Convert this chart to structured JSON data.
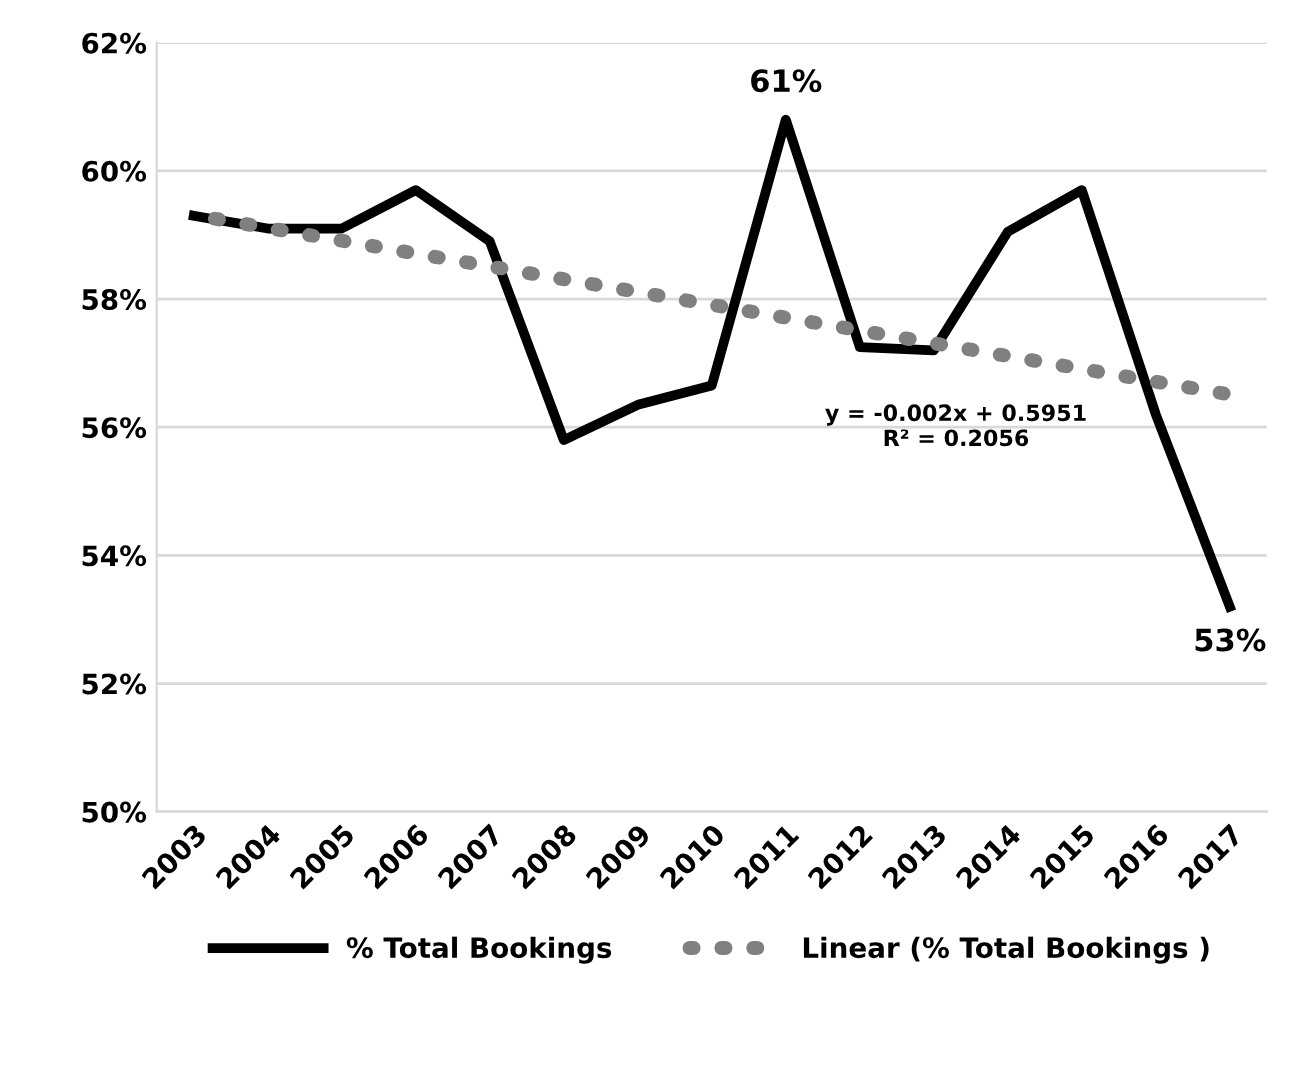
{
  "chart_data": {
    "type": "line",
    "categories": [
      "2003",
      "2004",
      "2005",
      "2006",
      "2007",
      "2008",
      "2009",
      "2010",
      "2011",
      "2012",
      "2013",
      "2014",
      "2015",
      "2016",
      "2017"
    ],
    "series": [
      {
        "name": "% Total Bookings",
        "color": "#000000",
        "line_style": "solid",
        "values": [
          59.3,
          59.1,
          59.1,
          59.7,
          58.9,
          55.8,
          56.35,
          56.65,
          60.8,
          57.25,
          57.2,
          59.05,
          59.7,
          56.2,
          53.2
        ],
        "value_labels": [
          null,
          null,
          null,
          null,
          null,
          null,
          null,
          null,
          "61%",
          null,
          null,
          null,
          null,
          null,
          "53%"
        ]
      },
      {
        "name": "Linear (% Total Bookings )",
        "color": "#808080",
        "line_style": "dotted",
        "values": [
          59.31,
          59.11,
          58.91,
          58.71,
          58.51,
          58.31,
          58.11,
          57.91,
          57.71,
          57.51,
          57.31,
          57.11,
          56.91,
          56.71,
          56.51
        ]
      }
    ],
    "annotations": [
      "y = -0.002x + 0.5951",
      "R² = 0.2056"
    ],
    "ylim": [
      50,
      62
    ],
    "yticks": [
      {
        "value": 50,
        "label": "50%"
      },
      {
        "value": 52,
        "label": "52%"
      },
      {
        "value": 54,
        "label": "54%"
      },
      {
        "value": 56,
        "label": "56%"
      },
      {
        "value": 58,
        "label": "58%"
      },
      {
        "value": 60,
        "label": "60%"
      },
      {
        "value": 62,
        "label": "62%"
      }
    ],
    "grid": "y",
    "legend": "bottom",
    "marker": "none"
  }
}
